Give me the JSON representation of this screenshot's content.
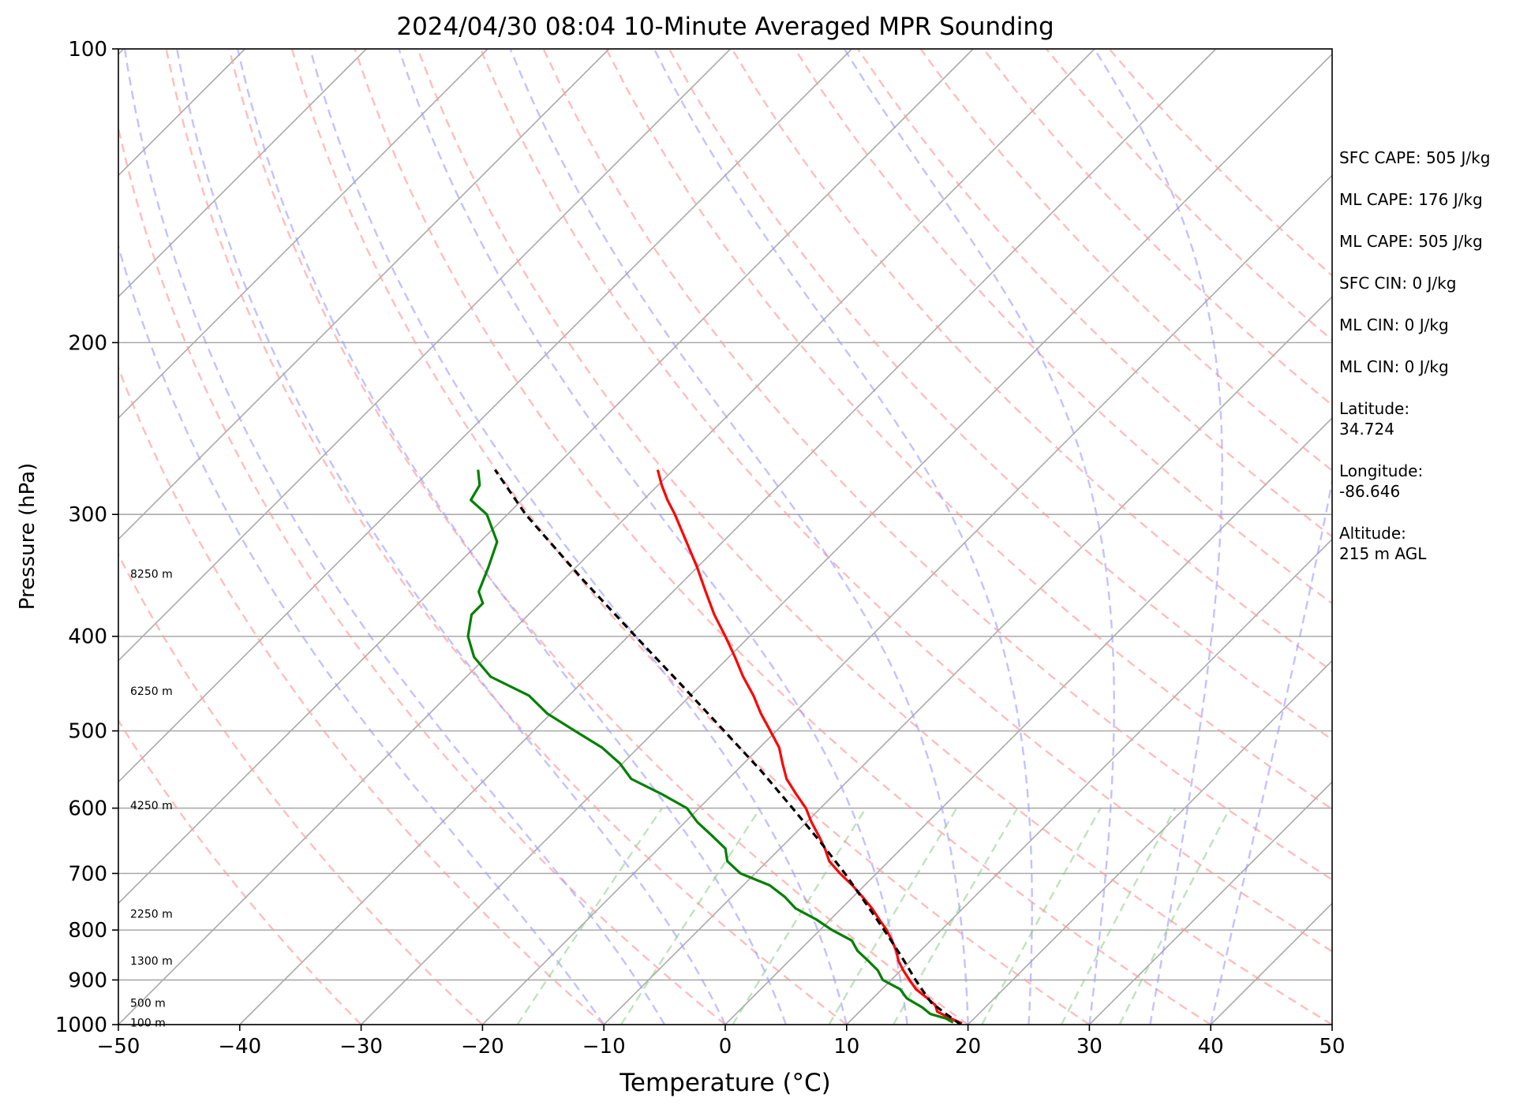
{
  "chart_data": {
    "type": "line",
    "title": "2024/04/30 08:04 10-Minute Averaged MPR Sounding",
    "xlabel": "Temperature (°C)",
    "ylabel": "Pressure (hPa)",
    "xlim": [
      -50,
      50
    ],
    "ylim": [
      1000,
      100
    ],
    "y_scale": "log",
    "skew": "skew-T log-p diagram",
    "x_ticks": [
      "−50",
      "−40",
      "−30",
      "−20",
      "−10",
      "0",
      "10",
      "20",
      "30",
      "40",
      "50"
    ],
    "y_ticks": [
      "100",
      "200",
      "300",
      "400",
      "500",
      "600",
      "700",
      "800",
      "900",
      "1000"
    ],
    "height_labels": [
      {
        "text": "100 m",
        "p": 995
      },
      {
        "text": "500 m",
        "p": 950
      },
      {
        "text": "1300 m",
        "p": 860
      },
      {
        "text": "2250 m",
        "p": 770
      },
      {
        "text": "4250 m",
        "p": 596
      },
      {
        "text": "6250 m",
        "p": 455
      },
      {
        "text": "8250 m",
        "p": 345
      }
    ],
    "series": [
      {
        "role": "temperature",
        "color": "#ff0000",
        "p": [
          997,
          985,
          970,
          955,
          940,
          920,
          900,
          880,
          860,
          840,
          820,
          800,
          780,
          760,
          740,
          720,
          700,
          680,
          660,
          640,
          620,
          600,
          580,
          560,
          540,
          520,
          500,
          480,
          460,
          440,
          420,
          400,
          380,
          360,
          340,
          320,
          300,
          290,
          280,
          270
        ],
        "t": [
          19.4,
          18.0,
          16.4,
          15.7,
          14.5,
          12.8,
          11.5,
          10.2,
          9.0,
          8.0,
          6.8,
          5.5,
          4.0,
          2.5,
          0.8,
          -1.0,
          -3.0,
          -4.9,
          -6.3,
          -7.9,
          -9.6,
          -11.2,
          -13.2,
          -15.2,
          -16.8,
          -18.4,
          -20.5,
          -22.7,
          -24.8,
          -27.2,
          -29.5,
          -32.0,
          -34.7,
          -37.3,
          -40.0,
          -43.0,
          -46.2,
          -48.0,
          -49.7,
          -51.3
        ]
      },
      {
        "role": "dewpoint",
        "color": "#008000",
        "p": [
          995,
          985,
          975,
          960,
          940,
          920,
          900,
          880,
          860,
          840,
          820,
          800,
          780,
          760,
          740,
          720,
          700,
          680,
          660,
          640,
          620,
          600,
          580,
          560,
          540,
          520,
          500,
          480,
          460,
          440,
          420,
          400,
          380,
          370,
          360,
          340,
          320,
          300,
          290,
          280,
          270
        ],
        "t": [
          18.6,
          17.6,
          16.0,
          14.8,
          12.8,
          11.5,
          9.3,
          8.1,
          6.5,
          4.8,
          3.5,
          1.0,
          -1.2,
          -3.8,
          -5.6,
          -7.8,
          -11.2,
          -13.3,
          -14.5,
          -16.7,
          -19.0,
          -21.0,
          -24.3,
          -28.0,
          -30.2,
          -33.0,
          -36.6,
          -40.3,
          -43.3,
          -48.0,
          -51.0,
          -53.2,
          -54.7,
          -54.7,
          -56.0,
          -57.2,
          -58.6,
          -61.7,
          -64.2,
          -64.7,
          -66.1
        ]
      },
      {
        "role": "parcel",
        "color": "#000000",
        "dashed": true,
        "p": [
          1000,
          975,
          950,
          925,
          900,
          850,
          800,
          750,
          700,
          650,
          600,
          550,
          500,
          450,
          400,
          350,
          300,
          270
        ],
        "t": [
          19.4,
          17.3,
          15.2,
          13.6,
          12.0,
          8.8,
          5.3,
          1.5,
          -2.6,
          -7.2,
          -12.3,
          -17.9,
          -24.3,
          -31.4,
          -39.4,
          -48.4,
          -58.5,
          -64.7
        ]
      }
    ],
    "grid": true
  },
  "info": {
    "sfc_cape": "SFC CAPE: 505 J/kg",
    "ml_cape_1": "ML CAPE: 176 J/kg",
    "ml_cape_2": "ML CAPE: 505 J/kg",
    "sfc_cin": "SFC CIN: 0 J/kg",
    "ml_cin_1": "ML CIN: 0 J/kg",
    "ml_cin_2": "ML CIN: 0 J/kg",
    "latitude": "Latitude:\n34.724",
    "longitude": "Longitude:\n-86.646",
    "altitude": "Altitude:\n215 m AGL"
  }
}
